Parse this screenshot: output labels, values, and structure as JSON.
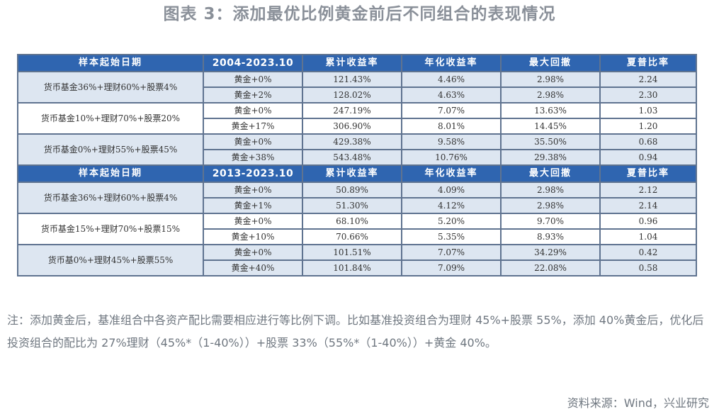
{
  "title": "图表 3：添加最优比例黄金前后不同组合的表现情况",
  "headers": {
    "start_label": "样本起始日期",
    "metrics": [
      "累计收益率",
      "年化收益率",
      "最大回撤",
      "夏普比率"
    ]
  },
  "sections": [
    {
      "period": "2004-2023.10",
      "groups": [
        {
          "label": "货币基金36%+理财60%+股票4%",
          "rows": [
            {
              "gold": "黄金+0%",
              "cum": "121.43%",
              "ann": "4.46%",
              "mdd": "2.98%",
              "sharpe": "2.24"
            },
            {
              "gold": "黄金+2%",
              "cum": "128.02%",
              "ann": "4.63%",
              "mdd": "2.98%",
              "sharpe": "2.30"
            }
          ]
        },
        {
          "label": "货币基金10%+理财70%+股票20%",
          "rows": [
            {
              "gold": "黄金+0%",
              "cum": "247.19%",
              "ann": "7.07%",
              "mdd": "13.63%",
              "sharpe": "1.03"
            },
            {
              "gold": "黄金+17%",
              "cum": "306.90%",
              "ann": "8.01%",
              "mdd": "14.45%",
              "sharpe": "1.20"
            }
          ]
        },
        {
          "label": "货币基金0%+理财55%+股票45%",
          "rows": [
            {
              "gold": "黄金+0%",
              "cum": "429.38%",
              "ann": "9.58%",
              "mdd": "35.50%",
              "sharpe": "0.68"
            },
            {
              "gold": "黄金+38%",
              "cum": "543.48%",
              "ann": "10.76%",
              "mdd": "29.38%",
              "sharpe": "0.94"
            }
          ]
        }
      ]
    },
    {
      "period": "2013-2023.10",
      "groups": [
        {
          "label": "货币基金36%+理财60%+股票4%",
          "rows": [
            {
              "gold": "黄金+0%",
              "cum": "50.89%",
              "ann": "4.09%",
              "mdd": "2.98%",
              "sharpe": "2.12"
            },
            {
              "gold": "黄金+1%",
              "cum": "51.30%",
              "ann": "4.12%",
              "mdd": "2.98%",
              "sharpe": "2.14"
            }
          ]
        },
        {
          "label": "货币基金15%+理财70%+股票15%",
          "rows": [
            {
              "gold": "黄金+0%",
              "cum": "68.10%",
              "ann": "5.20%",
              "mdd": "9.70%",
              "sharpe": "0.96"
            },
            {
              "gold": "黄金+10%",
              "cum": "70.66%",
              "ann": "5.35%",
              "mdd": "8.93%",
              "sharpe": "1.04"
            }
          ]
        },
        {
          "label": "货币基0%+理财45%+股票55%",
          "rows": [
            {
              "gold": "黄金+0%",
              "cum": "101.51%",
              "ann": "7.07%",
              "mdd": "34.29%",
              "sharpe": "0.42"
            },
            {
              "gold": "黄金+40%",
              "cum": "101.84%",
              "ann": "7.09%",
              "mdd": "22.08%",
              "sharpe": "0.58"
            }
          ]
        }
      ]
    }
  ],
  "note": "注：添加黄金后，基准组合中各资产配比需要相应进行等比例下调。比如基准投资组合为理财 45%+股票 55%，添加 40%黄金后，优化后投资组合的配比为 27%理财（45%*（1-40%））+股票 33%（55%*（1-40%））+黄金 40%。",
  "source": "资料来源：Wind，兴业研究",
  "colors": {
    "header_bg": "#2f65b0",
    "shade_bg": "#dde6f1",
    "border": "#5f7390"
  }
}
